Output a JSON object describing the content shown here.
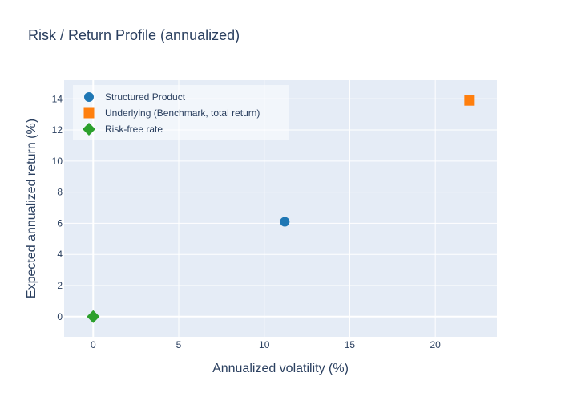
{
  "chart_data": {
    "type": "scatter",
    "title": "Risk / Return Profile (annualized)",
    "xlabel": "Annualized volatility (%)",
    "ylabel": "Expected annualized return (%)",
    "xlim": [
      -1.7,
      23.6
    ],
    "ylim": [
      -1.3,
      15.2
    ],
    "xticks": [
      0,
      5,
      10,
      15,
      20
    ],
    "yticks": [
      0,
      2,
      4,
      6,
      8,
      10,
      12,
      14
    ],
    "grid": true,
    "legend_position": "top-left",
    "plot_bgcolor": "#e5ecf6",
    "series": [
      {
        "name": "Structured Product",
        "x": [
          11.2
        ],
        "y": [
          6.1
        ],
        "marker": "circle",
        "color": "#1f77b4"
      },
      {
        "name": "Underlying (Benchmark, total return)",
        "x": [
          22.0
        ],
        "y": [
          13.9
        ],
        "marker": "square",
        "color": "#ff7f0e"
      },
      {
        "name": "Risk-free rate",
        "x": [
          0.0
        ],
        "y": [
          0.0
        ],
        "marker": "diamond",
        "color": "#2ca02c"
      }
    ]
  }
}
